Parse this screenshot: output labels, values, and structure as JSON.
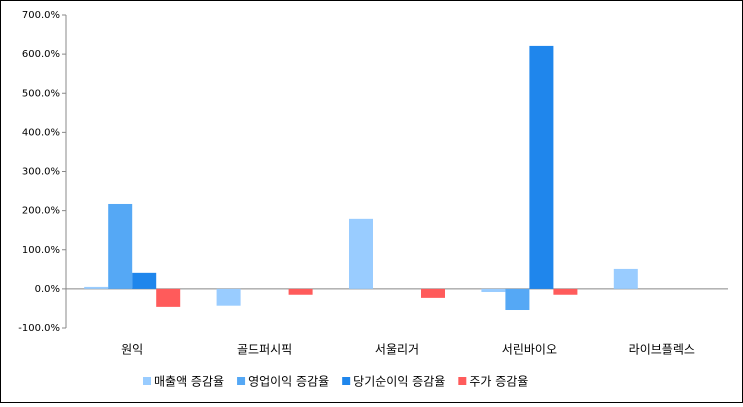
{
  "chart_data": {
    "type": "bar",
    "categories": [
      "원익",
      "골드퍼시픽",
      "서울리거",
      "서린바이오",
      "라이브플렉스"
    ],
    "series": [
      {
        "name": "매출액 증감율",
        "color": "#99ccff",
        "values": [
          5,
          -43,
          179,
          -8,
          51
        ]
      },
      {
        "name": "영업이익 증감율",
        "color": "#55a8f5",
        "values": [
          217,
          null,
          null,
          -54,
          null
        ]
      },
      {
        "name": "당기순이익 증감율",
        "color": "#1f86ec",
        "values": [
          41,
          null,
          null,
          621,
          null
        ]
      },
      {
        "name": "주가 증감율",
        "color": "#ff5b5b",
        "values": [
          -46,
          -15,
          -23,
          -15,
          null
        ]
      }
    ],
    "ylim": [
      -100,
      700
    ],
    "yticks": [
      {
        "value": -100,
        "label": "-100.0%"
      },
      {
        "value": 0,
        "label": "0.0%"
      },
      {
        "value": 100,
        "label": "100.0%"
      },
      {
        "value": 200,
        "label": "200.0%"
      },
      {
        "value": 300,
        "label": "300.0%"
      },
      {
        "value": 400,
        "label": "400.0%"
      },
      {
        "value": 500,
        "label": "500.0%"
      },
      {
        "value": 600,
        "label": "600.0%"
      },
      {
        "value": 700,
        "label": "700.0%"
      }
    ],
    "legend": "bottom"
  }
}
